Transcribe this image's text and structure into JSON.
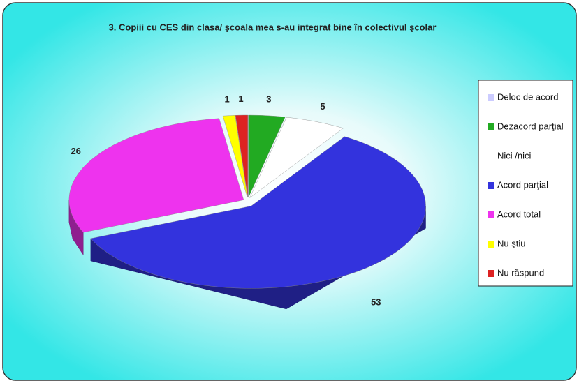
{
  "chart_data": {
    "type": "pie3d",
    "title": "3. Copiii cu CES din clasa/ şcoala mea s-au integrat bine în colectivul şcolar",
    "categories": [
      "Deloc de acord",
      "Dezacord parţial",
      "Nici /nici",
      "Acord parţial",
      "Acord total",
      "Nu ştiu",
      "Nu răspund"
    ],
    "values": [
      0,
      3,
      5,
      53,
      26,
      1,
      1
    ],
    "colors": [
      "#ccccff",
      "#22aa22",
      "#ffffff",
      "#3333dd",
      "#ee33ee",
      "#ffff00",
      "#dd2222"
    ],
    "legend": "right"
  }
}
